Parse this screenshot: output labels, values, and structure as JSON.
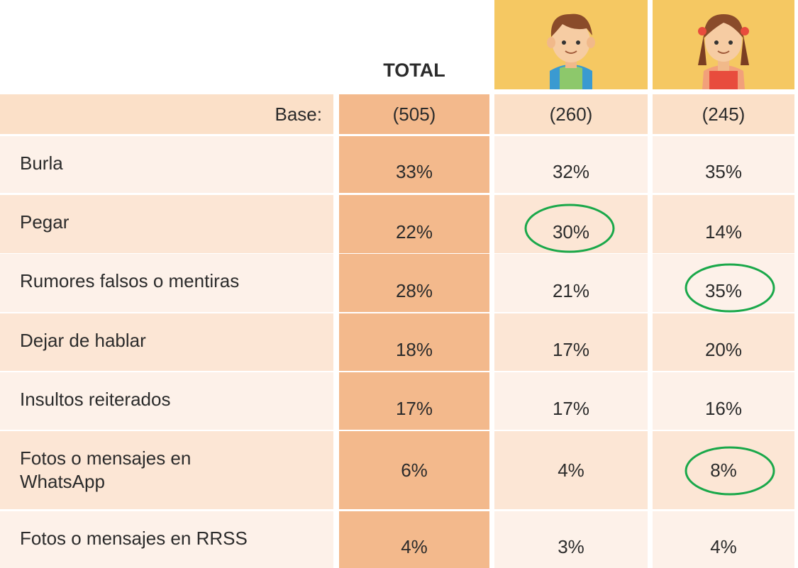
{
  "header": {
    "total": "TOTAL"
  },
  "table": {
    "base_label": "Base:",
    "base": [
      "(505)",
      "(260)",
      "(245)"
    ],
    "rows": [
      {
        "label": "Burla",
        "values": [
          "33%",
          "32%",
          "35%"
        ]
      },
      {
        "label": "Pegar",
        "values": [
          "22%",
          "30%",
          "14%"
        ]
      },
      {
        "label": "Rumores falsos o mentiras",
        "values": [
          "28%",
          "21%",
          "35%"
        ]
      },
      {
        "label": "Dejar de hablar",
        "values": [
          "18%",
          "17%",
          "20%"
        ]
      },
      {
        "label": "Insultos reiterados",
        "values": [
          "17%",
          "17%",
          "16%"
        ]
      },
      {
        "label": "Fotos o mensajes en WhatsApp",
        "values": [
          "6%",
          "4%",
          "8%"
        ]
      },
      {
        "label": "Fotos o mensajes en RRSS",
        "values": [
          "4%",
          "3%",
          "4%"
        ]
      }
    ]
  }
}
